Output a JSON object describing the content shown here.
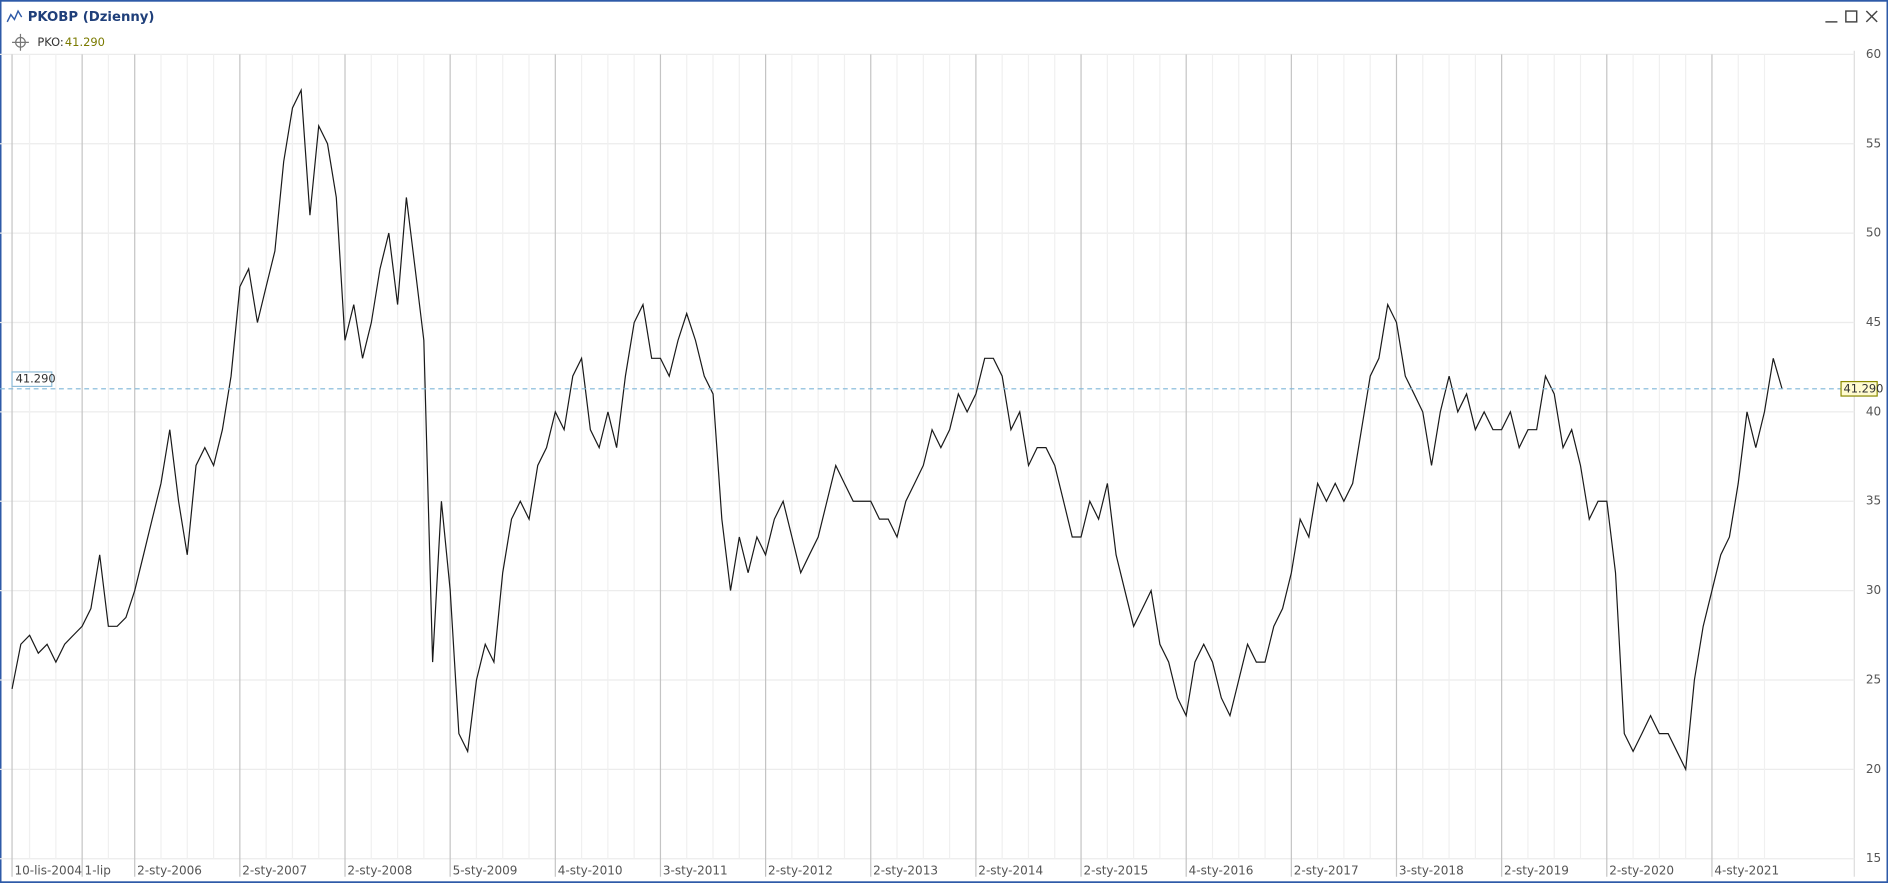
{
  "window_title": "PKOBP (Dzienny)",
  "chart_data": {
    "type": "line",
    "series": [
      {
        "name": "PKO:",
        "color": "#1a1a1a",
        "values": [
          24.5,
          27,
          27.5,
          26.5,
          27,
          26,
          27,
          27.5,
          28,
          29,
          32,
          28,
          28,
          28.5,
          30,
          32,
          34,
          36,
          39,
          35,
          32,
          37,
          38,
          37,
          39,
          42,
          47,
          48,
          45,
          47,
          49,
          54,
          57,
          58,
          51,
          56,
          55,
          52,
          44,
          46,
          43,
          45,
          48,
          50,
          46,
          52,
          48,
          44,
          26,
          35,
          30,
          22,
          21,
          25,
          27,
          26,
          31,
          34,
          35,
          34,
          37,
          38,
          40,
          39,
          42,
          43,
          39,
          38,
          40,
          38,
          42,
          45,
          46,
          43,
          43,
          42,
          44,
          45.5,
          44,
          42,
          41,
          34,
          30,
          33,
          31,
          33,
          32,
          34,
          35,
          33,
          31,
          32,
          33,
          35,
          37,
          36,
          35,
          35,
          35,
          34,
          34,
          33,
          35,
          36,
          37,
          39,
          38,
          39,
          41,
          40,
          41,
          43,
          43,
          42,
          39,
          40,
          37,
          38,
          38,
          37,
          35,
          33,
          33,
          35,
          34,
          36,
          32,
          30,
          28,
          29,
          30,
          27,
          26,
          24,
          23,
          26,
          27,
          26,
          24,
          23,
          25,
          27,
          26,
          26,
          28,
          29,
          31,
          34,
          33,
          36,
          35,
          36,
          35,
          36,
          39,
          42,
          43,
          46,
          45,
          42,
          41,
          40,
          37,
          40,
          42,
          40,
          41,
          39,
          40,
          39,
          39,
          40,
          38,
          39,
          39,
          42,
          41,
          38,
          39,
          37,
          34,
          35,
          35,
          31,
          22,
          21,
          22,
          23,
          22,
          22,
          21,
          20,
          25,
          28,
          30,
          32,
          33,
          36,
          40,
          38,
          40,
          43,
          41.29
        ]
      }
    ],
    "categories": [
      "10-lis-2004",
      null,
      null,
      null,
      null,
      null,
      null,
      null,
      "1-lip",
      null,
      null,
      null,
      null,
      null,
      "2-sty-2006",
      null,
      null,
      null,
      null,
      null,
      null,
      null,
      null,
      null,
      null,
      null,
      "2-sty-2007",
      null,
      null,
      null,
      null,
      null,
      null,
      null,
      null,
      null,
      null,
      null,
      "2-sty-2008",
      null,
      null,
      null,
      null,
      null,
      null,
      null,
      null,
      null,
      null,
      null,
      "5-sty-2009",
      null,
      null,
      null,
      null,
      null,
      null,
      null,
      null,
      null,
      null,
      null,
      "4-sty-2010",
      null,
      null,
      null,
      null,
      null,
      null,
      null,
      null,
      null,
      null,
      null,
      "3-sty-2011",
      null,
      null,
      null,
      null,
      null,
      null,
      null,
      null,
      null,
      null,
      null,
      "2-sty-2012",
      null,
      null,
      null,
      null,
      null,
      null,
      null,
      null,
      null,
      null,
      null,
      "2-sty-2013",
      null,
      null,
      null,
      null,
      null,
      null,
      null,
      null,
      null,
      null,
      null,
      "2-sty-2014",
      null,
      null,
      null,
      null,
      null,
      null,
      null,
      null,
      null,
      null,
      null,
      "2-sty-2015",
      null,
      null,
      null,
      null,
      null,
      null,
      null,
      null,
      null,
      null,
      null,
      "4-sty-2016",
      null,
      null,
      null,
      null,
      null,
      null,
      null,
      null,
      null,
      null,
      null,
      "2-sty-2017",
      null,
      null,
      null,
      null,
      null,
      null,
      null,
      null,
      null,
      null,
      null,
      "3-sty-2018",
      null,
      null,
      null,
      null,
      null,
      null,
      null,
      null,
      null,
      null,
      null,
      "2-sty-2019",
      null,
      null,
      null,
      null,
      null,
      null,
      null,
      null,
      null,
      null,
      null,
      "2-sty-2020",
      null,
      null,
      null,
      null,
      null,
      null,
      null,
      null,
      null,
      null,
      null,
      "4-sty-2021",
      null,
      null,
      null,
      null,
      null,
      null,
      null,
      null
    ],
    "ylim": [
      15,
      60
    ],
    "yticks": [
      15,
      20,
      25,
      30,
      35,
      40,
      45,
      50,
      55,
      60
    ],
    "grid": true,
    "price_line": {
      "value": 41.29,
      "label": "41.290"
    }
  }
}
